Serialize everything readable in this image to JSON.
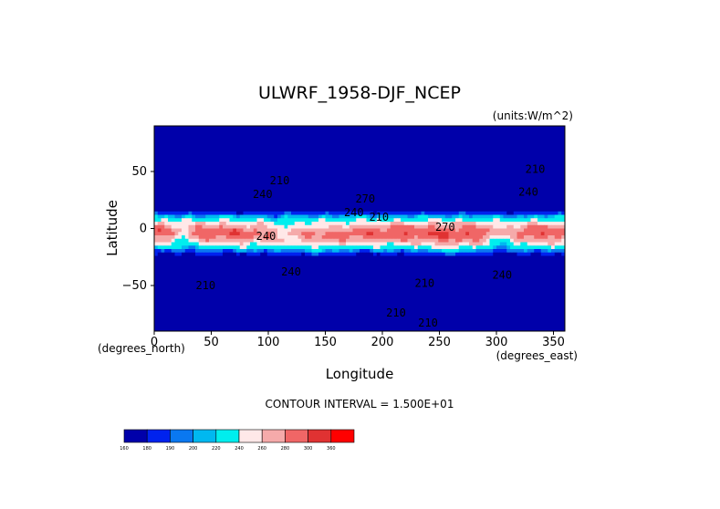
{
  "chart_data": {
    "type": "heatmap",
    "title": "ULWRF_1958-DJF_NCEP",
    "units_note": "(units:W/m^2)",
    "xlabel": "Longitude",
    "ylabel": "Latitude",
    "x_unit_note": "(degrees_east)",
    "y_unit_note": "(degrees_north)",
    "xlim": [
      0,
      360
    ],
    "ylim": [
      -90,
      90
    ],
    "x_ticks": [
      0,
      50,
      100,
      150,
      200,
      250,
      300,
      350
    ],
    "y_ticks": [
      50,
      0,
      -50
    ],
    "footer": "CONTOUR INTERVAL = 1.500E+01",
    "colorbar": {
      "levels": [
        160,
        180,
        190,
        200,
        220,
        240,
        260,
        280,
        300,
        360
      ],
      "colors": [
        "#0000aa",
        "#0022ee",
        "#0a78f0",
        "#00b8f0",
        "#00eeee",
        "#ffe8e8",
        "#f5aaaa",
        "#f06666",
        "#e03232",
        "#ff0000"
      ]
    },
    "contour_labels": [
      {
        "text": "210",
        "x": 334,
        "y": 49
      },
      {
        "text": "240",
        "x": 328,
        "y": 29
      },
      {
        "text": "240",
        "x": 95,
        "y": 27
      },
      {
        "text": "210",
        "x": 110,
        "y": 39
      },
      {
        "text": "270",
        "x": 185,
        "y": 23
      },
      {
        "text": "240",
        "x": 175,
        "y": 11
      },
      {
        "text": "210",
        "x": 197,
        "y": 7
      },
      {
        "text": "270",
        "x": 255,
        "y": -2
      },
      {
        "text": "240",
        "x": 98,
        "y": -10
      },
      {
        "text": "240",
        "x": 120,
        "y": -41
      },
      {
        "text": "240",
        "x": 305,
        "y": -44
      },
      {
        "text": "210",
        "x": 45,
        "y": -53
      },
      {
        "text": "210",
        "x": 237,
        "y": -51
      },
      {
        "text": "210",
        "x": 212,
        "y": -77
      },
      {
        "text": "210",
        "x": 240,
        "y": -86
      }
    ]
  }
}
